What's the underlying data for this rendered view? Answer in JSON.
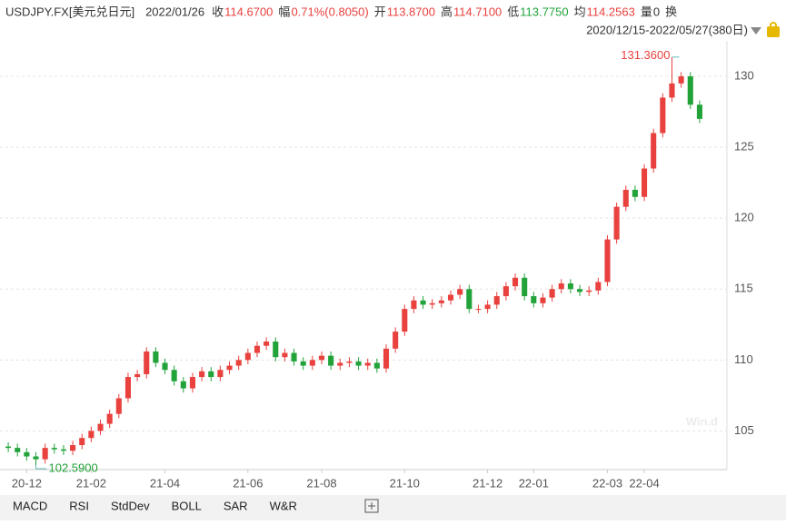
{
  "chart_data": {
    "type": "candlestick",
    "instrument": "USDJPY.FX[美元兑日元]",
    "date": "2022/01/26",
    "quote": [
      {
        "label": "收",
        "value": "114.6700"
      },
      {
        "label": "幅",
        "value": "0.71%(0.8050)"
      },
      {
        "label": "开",
        "value": "113.8700"
      },
      {
        "label": "高",
        "value": "114.7100"
      },
      {
        "label": "低",
        "value": "113.7750"
      },
      {
        "label": "均",
        "value": "114.2563"
      },
      {
        "label": "量",
        "value": "0"
      }
    ],
    "extra": "换",
    "range": "2020/12/15-2022/05/27(380日)",
    "watermark": "Win.d",
    "max_label": "131.3600",
    "min_label": "102.5900",
    "up_color": "#e8413e",
    "down_color": "#22a33a",
    "open": [
      103.9,
      103.8,
      103.5,
      103.2,
      103.0,
      103.8,
      103.7,
      103.6,
      104.0,
      104.5,
      105.0,
      105.5,
      106.2,
      107.3,
      108.8,
      109.0,
      110.6,
      109.8,
      109.3,
      108.5,
      108.0,
      108.8,
      109.2,
      108.8,
      109.3,
      109.6,
      110.0,
      110.5,
      111.0,
      111.3,
      110.2,
      110.5,
      109.9,
      109.6,
      110.0,
      110.3,
      109.6,
      109.8,
      109.9,
      109.6,
      109.8,
      109.4,
      110.8,
      112.0,
      113.6,
      114.2,
      113.9,
      114.0,
      114.2,
      114.6,
      115.0,
      113.6,
      113.6,
      113.9,
      114.5,
      115.2,
      115.8,
      114.5,
      114.0,
      114.4,
      115.0,
      115.4,
      115.0,
      114.8,
      114.9,
      115.5,
      118.5,
      120.8,
      122.0,
      121.5,
      123.5,
      126.0,
      128.5,
      129.5,
      130.0,
      128.0
    ],
    "high": [
      104.2,
      104.1,
      103.8,
      103.5,
      104.1,
      104.1,
      104.0,
      104.3,
      104.8,
      105.3,
      105.8,
      106.5,
      107.6,
      109.1,
      109.3,
      110.9,
      110.9,
      110.1,
      109.6,
      108.8,
      109.1,
      109.5,
      109.5,
      109.6,
      109.9,
      110.3,
      110.8,
      111.3,
      111.6,
      111.6,
      110.8,
      110.8,
      110.2,
      110.3,
      110.6,
      110.6,
      110.1,
      110.2,
      110.2,
      110.1,
      110.1,
      111.1,
      112.3,
      113.9,
      114.5,
      114.5,
      114.3,
      114.5,
      114.9,
      115.3,
      115.3,
      113.9,
      114.2,
      114.8,
      115.5,
      116.1,
      116.1,
      114.8,
      114.7,
      115.3,
      115.7,
      115.7,
      115.3,
      115.2,
      115.8,
      118.8,
      121.1,
      122.3,
      122.3,
      123.8,
      126.3,
      128.8,
      131.36,
      130.3,
      130.3,
      128.3
    ],
    "low": [
      103.5,
      103.2,
      102.9,
      102.59,
      102.7,
      103.4,
      103.3,
      103.3,
      103.7,
      104.2,
      104.7,
      105.2,
      105.9,
      107.0,
      108.5,
      108.7,
      109.5,
      109.0,
      108.2,
      107.7,
      107.7,
      108.5,
      108.5,
      108.5,
      109.0,
      109.3,
      109.7,
      110.2,
      110.7,
      109.9,
      109.9,
      109.6,
      109.3,
      109.3,
      109.7,
      109.3,
      109.3,
      109.5,
      109.3,
      109.3,
      109.1,
      109.1,
      110.5,
      111.7,
      113.3,
      113.6,
      113.6,
      113.7,
      113.9,
      114.3,
      113.3,
      113.3,
      113.3,
      113.6,
      114.2,
      114.9,
      114.2,
      113.7,
      113.7,
      114.1,
      114.7,
      114.7,
      114.5,
      114.5,
      114.6,
      115.2,
      118.2,
      120.5,
      121.2,
      121.2,
      123.2,
      125.7,
      128.2,
      129.2,
      127.7,
      126.7
    ],
    "close": [
      103.8,
      103.5,
      103.2,
      103.0,
      103.8,
      103.7,
      103.6,
      104.0,
      104.5,
      105.0,
      105.5,
      106.2,
      107.3,
      108.8,
      109.0,
      110.6,
      109.8,
      109.3,
      108.5,
      108.0,
      108.8,
      109.2,
      108.8,
      109.3,
      109.6,
      110.0,
      110.5,
      111.0,
      111.3,
      110.2,
      110.5,
      109.9,
      109.6,
      110.0,
      110.3,
      109.6,
      109.8,
      109.9,
      109.6,
      109.8,
      109.4,
      110.8,
      112.0,
      113.6,
      114.2,
      113.9,
      114.0,
      114.2,
      114.6,
      115.0,
      113.6,
      113.6,
      113.9,
      114.5,
      115.2,
      115.8,
      114.5,
      114.0,
      114.4,
      115.0,
      115.4,
      115.0,
      114.8,
      114.9,
      115.5,
      118.5,
      120.8,
      122.0,
      121.5,
      123.5,
      126.0,
      128.5,
      129.5,
      130.0,
      128.0,
      127.0
    ],
    "ylim": [
      102.4,
      132.5
    ],
    "yticks": [
      105,
      110,
      115,
      120,
      125,
      130
    ],
    "xlim": [
      -0.5,
      75.5
    ],
    "xticks": [
      {
        "value": 2,
        "label": "20-12"
      },
      {
        "value": 9,
        "label": "21-02"
      },
      {
        "value": 17,
        "label": "21-04"
      },
      {
        "value": 26,
        "label": "21-06"
      },
      {
        "value": 34,
        "label": "21-08"
      },
      {
        "value": 43,
        "label": "21-10"
      },
      {
        "value": 52,
        "label": "21-12"
      },
      {
        "value": 57,
        "label": "22-01"
      },
      {
        "value": 65,
        "label": "22-03"
      },
      {
        "value": 69,
        "label": "22-04"
      }
    ],
    "grid": true
  },
  "tabs": [
    "MACD",
    "RSI",
    "StdDev",
    "BOLL",
    "SAR",
    "W&R"
  ]
}
